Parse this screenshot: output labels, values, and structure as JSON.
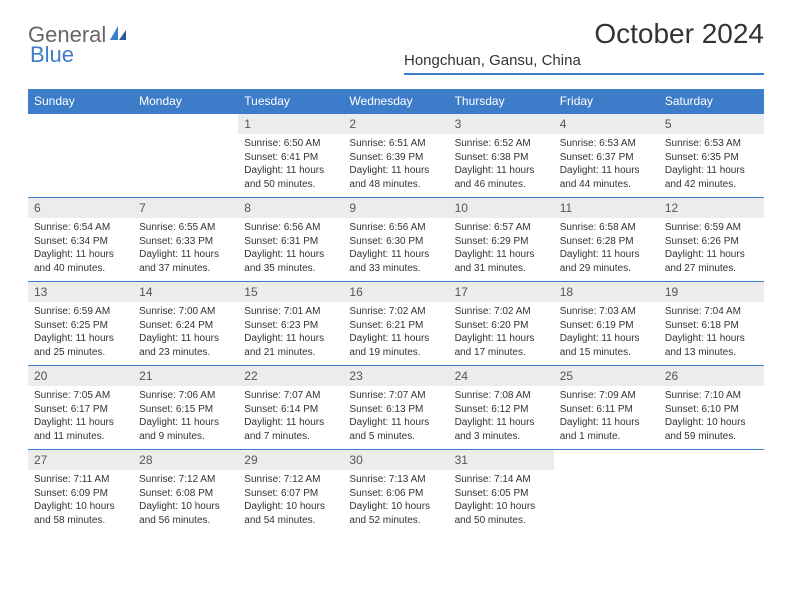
{
  "brand": {
    "part1": "General",
    "part2": "Blue"
  },
  "title": "October 2024",
  "location": "Hongchuan, Gansu, China",
  "header_bg": "#3d7cc9",
  "day_labels": [
    "Sunday",
    "Monday",
    "Tuesday",
    "Wednesday",
    "Thursday",
    "Friday",
    "Saturday"
  ],
  "weeks": [
    [
      null,
      null,
      {
        "n": "1",
        "sr": "6:50 AM",
        "ss": "6:41 PM",
        "dl": "11 hours and 50 minutes."
      },
      {
        "n": "2",
        "sr": "6:51 AM",
        "ss": "6:39 PM",
        "dl": "11 hours and 48 minutes."
      },
      {
        "n": "3",
        "sr": "6:52 AM",
        "ss": "6:38 PM",
        "dl": "11 hours and 46 minutes."
      },
      {
        "n": "4",
        "sr": "6:53 AM",
        "ss": "6:37 PM",
        "dl": "11 hours and 44 minutes."
      },
      {
        "n": "5",
        "sr": "6:53 AM",
        "ss": "6:35 PM",
        "dl": "11 hours and 42 minutes."
      }
    ],
    [
      {
        "n": "6",
        "sr": "6:54 AM",
        "ss": "6:34 PM",
        "dl": "11 hours and 40 minutes."
      },
      {
        "n": "7",
        "sr": "6:55 AM",
        "ss": "6:33 PM",
        "dl": "11 hours and 37 minutes."
      },
      {
        "n": "8",
        "sr": "6:56 AM",
        "ss": "6:31 PM",
        "dl": "11 hours and 35 minutes."
      },
      {
        "n": "9",
        "sr": "6:56 AM",
        "ss": "6:30 PM",
        "dl": "11 hours and 33 minutes."
      },
      {
        "n": "10",
        "sr": "6:57 AM",
        "ss": "6:29 PM",
        "dl": "11 hours and 31 minutes."
      },
      {
        "n": "11",
        "sr": "6:58 AM",
        "ss": "6:28 PM",
        "dl": "11 hours and 29 minutes."
      },
      {
        "n": "12",
        "sr": "6:59 AM",
        "ss": "6:26 PM",
        "dl": "11 hours and 27 minutes."
      }
    ],
    [
      {
        "n": "13",
        "sr": "6:59 AM",
        "ss": "6:25 PM",
        "dl": "11 hours and 25 minutes."
      },
      {
        "n": "14",
        "sr": "7:00 AM",
        "ss": "6:24 PM",
        "dl": "11 hours and 23 minutes."
      },
      {
        "n": "15",
        "sr": "7:01 AM",
        "ss": "6:23 PM",
        "dl": "11 hours and 21 minutes."
      },
      {
        "n": "16",
        "sr": "7:02 AM",
        "ss": "6:21 PM",
        "dl": "11 hours and 19 minutes."
      },
      {
        "n": "17",
        "sr": "7:02 AM",
        "ss": "6:20 PM",
        "dl": "11 hours and 17 minutes."
      },
      {
        "n": "18",
        "sr": "7:03 AM",
        "ss": "6:19 PM",
        "dl": "11 hours and 15 minutes."
      },
      {
        "n": "19",
        "sr": "7:04 AM",
        "ss": "6:18 PM",
        "dl": "11 hours and 13 minutes."
      }
    ],
    [
      {
        "n": "20",
        "sr": "7:05 AM",
        "ss": "6:17 PM",
        "dl": "11 hours and 11 minutes."
      },
      {
        "n": "21",
        "sr": "7:06 AM",
        "ss": "6:15 PM",
        "dl": "11 hours and 9 minutes."
      },
      {
        "n": "22",
        "sr": "7:07 AM",
        "ss": "6:14 PM",
        "dl": "11 hours and 7 minutes."
      },
      {
        "n": "23",
        "sr": "7:07 AM",
        "ss": "6:13 PM",
        "dl": "11 hours and 5 minutes."
      },
      {
        "n": "24",
        "sr": "7:08 AM",
        "ss": "6:12 PM",
        "dl": "11 hours and 3 minutes."
      },
      {
        "n": "25",
        "sr": "7:09 AM",
        "ss": "6:11 PM",
        "dl": "11 hours and 1 minute."
      },
      {
        "n": "26",
        "sr": "7:10 AM",
        "ss": "6:10 PM",
        "dl": "10 hours and 59 minutes."
      }
    ],
    [
      {
        "n": "27",
        "sr": "7:11 AM",
        "ss": "6:09 PM",
        "dl": "10 hours and 58 minutes."
      },
      {
        "n": "28",
        "sr": "7:12 AM",
        "ss": "6:08 PM",
        "dl": "10 hours and 56 minutes."
      },
      {
        "n": "29",
        "sr": "7:12 AM",
        "ss": "6:07 PM",
        "dl": "10 hours and 54 minutes."
      },
      {
        "n": "30",
        "sr": "7:13 AM",
        "ss": "6:06 PM",
        "dl": "10 hours and 52 minutes."
      },
      {
        "n": "31",
        "sr": "7:14 AM",
        "ss": "6:05 PM",
        "dl": "10 hours and 50 minutes."
      },
      null,
      null
    ]
  ],
  "labels": {
    "sunrise": "Sunrise:",
    "sunset": "Sunset:",
    "daylight": "Daylight:"
  }
}
